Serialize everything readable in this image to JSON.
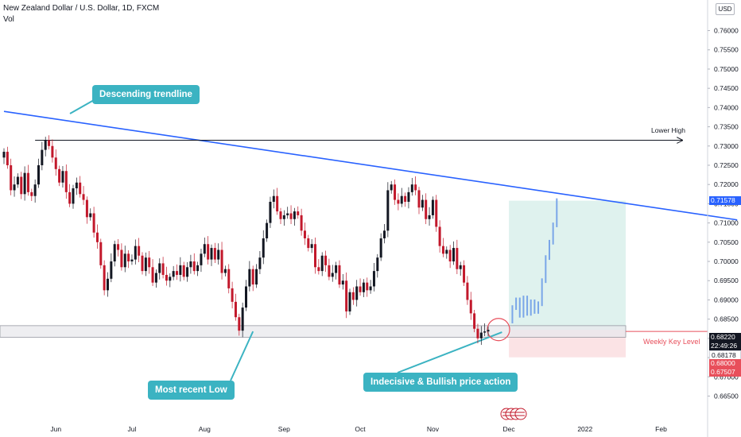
{
  "header": {
    "title": "New Zealand Dollar / U.S. Dollar, 1D, FXCM",
    "subtitle": "Vol"
  },
  "currency_button": "USD",
  "annotations": {
    "trendline": "Descending trendline",
    "recent_low": "Most recent Low",
    "price_action": "Indecisive & Bullish price action",
    "lower_high": "Lower High",
    "weekly_key_level": "Weekly Key Level"
  },
  "price_labels": {
    "current": "0.68220",
    "countdown": "22:49:26",
    "level_a": "0.68178",
    "level_b": "0.68000",
    "level_c": "0.67507",
    "target": "0.71578"
  },
  "colors": {
    "up": "#131722",
    "down": "#c2182b",
    "trendline": "#2962ff",
    "callout": "#3bb3c2",
    "target_zone": "#dff2ee",
    "stop_zone": "#fbe3e5",
    "projection": "#7aa6e8",
    "weekly_level": "#e84f5b"
  },
  "chart_data": {
    "type": "candlestick",
    "title": "New Zealand Dollar / U.S. Dollar, 1D, FXCM",
    "ylim": [
      0.662,
      0.763
    ],
    "y_ticks": [
      "0.76000",
      "0.75500",
      "0.75000",
      "0.74500",
      "0.74000",
      "0.73500",
      "0.73000",
      "0.72500",
      "0.72000",
      "0.71500",
      "0.71000",
      "0.70500",
      "0.70000",
      "0.69500",
      "0.69000",
      "0.68500",
      "0.68000",
      "0.67500",
      "0.67000",
      "0.66500"
    ],
    "x_ticks": [
      {
        "label": "Jun",
        "index": 15
      },
      {
        "label": "Jul",
        "index": 37
      },
      {
        "label": "Aug",
        "index": 58
      },
      {
        "label": "Sep",
        "index": 81
      },
      {
        "label": "Oct",
        "index": 103
      },
      {
        "label": "Nov",
        "index": 124
      },
      {
        "label": "Dec",
        "index": 146
      },
      {
        "label": "2022",
        "index": 168
      },
      {
        "label": "Feb",
        "index": 190
      }
    ],
    "closes": [
      0.7285,
      0.725,
      0.7185,
      0.72,
      0.722,
      0.7175,
      0.723,
      0.718,
      0.717,
      0.72,
      0.725,
      0.729,
      0.7315,
      0.73,
      0.727,
      0.724,
      0.7205,
      0.7235,
      0.718,
      0.715,
      0.719,
      0.7205,
      0.7175,
      0.716,
      0.7115,
      0.7125,
      0.7075,
      0.705,
      0.699,
      0.6925,
      0.6955,
      0.7,
      0.7045,
      0.703,
      0.6985,
      0.702,
      0.7,
      0.7005,
      0.704,
      0.7015,
      0.6975,
      0.701,
      0.6985,
      0.6945,
      0.697,
      0.6995,
      0.6965,
      0.695,
      0.696,
      0.6975,
      0.6965,
      0.699,
      0.696,
      0.6985,
      0.7,
      0.6975,
      0.699,
      0.702,
      0.7045,
      0.7005,
      0.7035,
      0.7005,
      0.703,
      0.697,
      0.698,
      0.693,
      0.6895,
      0.6855,
      0.682,
      0.688,
      0.6935,
      0.698,
      0.694,
      0.698,
      0.701,
      0.706,
      0.71,
      0.7155,
      0.717,
      0.713,
      0.711,
      0.712,
      0.7125,
      0.711,
      0.713,
      0.712,
      0.708,
      0.706,
      0.7035,
      0.7045,
      0.6985,
      0.6975,
      0.7015,
      0.699,
      0.696,
      0.697,
      0.699,
      0.694,
      0.695,
      0.687,
      0.692,
      0.69,
      0.6935,
      0.692,
      0.6945,
      0.6925,
      0.6935,
      0.6975,
      0.701,
      0.706,
      0.708,
      0.7185,
      0.72,
      0.716,
      0.715,
      0.717,
      0.7155,
      0.718,
      0.72,
      0.7185,
      0.714,
      0.716,
      0.711,
      0.712,
      0.716,
      0.709,
      0.704,
      0.702,
      0.703,
      0.7,
      0.7035,
      0.698,
      0.699,
      0.6945,
      0.69,
      0.6865,
      0.6825,
      0.68,
      0.6815,
      0.6818,
      0.6822
    ],
    "ohlc_sample_note": "",
    "trendline": {
      "from": {
        "index": 0,
        "price": 0.739
      },
      "to": {
        "index": 212,
        "price": 0.7108
      }
    },
    "lower_high_level": 0.7315,
    "weekly_key_level": {
      "top": 0.6833,
      "bottom": 0.6803
    },
    "target_zone": {
      "top": 0.71578,
      "bottom": 0.6822
    },
    "stop_zone": {
      "top": 0.6822,
      "bottom": 0.67507
    },
    "projection": [
      {
        "o": 0.6845,
        "c": 0.688
      },
      {
        "o": 0.688,
        "c": 0.69
      },
      {
        "o": 0.69,
        "c": 0.686
      },
      {
        "o": 0.686,
        "c": 0.6905
      },
      {
        "o": 0.6905,
        "c": 0.6865
      },
      {
        "o": 0.6865,
        "c": 0.6895
      },
      {
        "o": 0.6895,
        "c": 0.687
      },
      {
        "o": 0.687,
        "c": 0.689
      },
      {
        "o": 0.689,
        "c": 0.695
      },
      {
        "o": 0.695,
        "c": 0.701
      },
      {
        "o": 0.701,
        "c": 0.705
      },
      {
        "o": 0.705,
        "c": 0.7095
      },
      {
        "o": 0.7095,
        "c": 0.7158
      }
    ]
  }
}
